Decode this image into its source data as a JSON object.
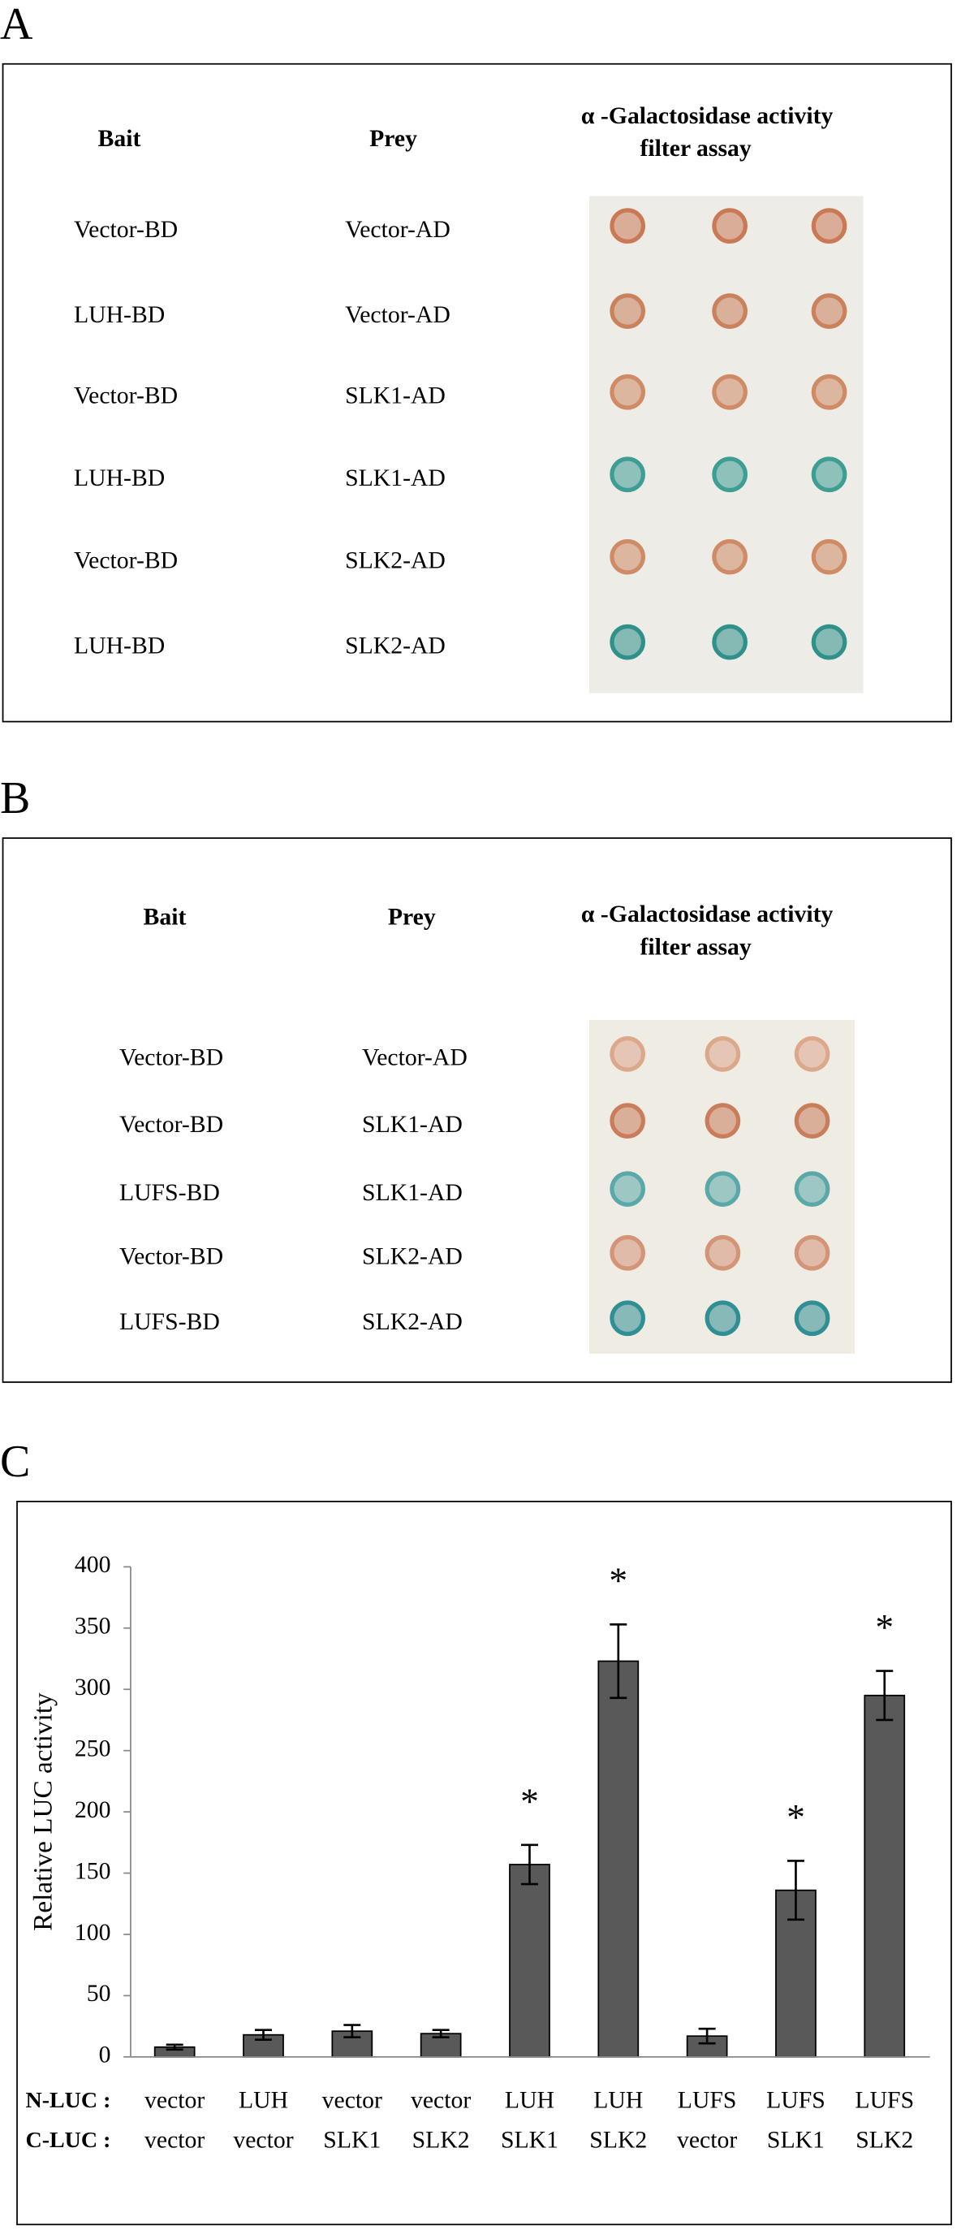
{
  "panel_a": {
    "label": "A",
    "headers": {
      "bait": "Bait",
      "prey": "Prey",
      "assay": [
        "α -Galactosidase activity",
        "filter assay"
      ]
    },
    "rows": [
      [
        "Vector-BD",
        "Vector-AD"
      ],
      [
        "LUH-BD",
        "Vector-AD"
      ],
      [
        "Vector-BD",
        "SLK1-AD"
      ],
      [
        "LUH-BD",
        "SLK1-AD"
      ],
      [
        "Vector-BD",
        "SLK2-AD"
      ],
      [
        "LUH-BD",
        "SLK2-AD"
      ]
    ]
  },
  "panel_b": {
    "label": "B",
    "headers": {
      "bait": "Bait",
      "prey": "Prey",
      "assay": [
        "α -Galactosidase activity",
        "filter assay"
      ]
    },
    "rows": [
      [
        "Vector-BD",
        "Vector-AD"
      ],
      [
        "Vector-BD",
        "SLK1-AD"
      ],
      [
        "LUFS-BD",
        "SLK1-AD"
      ],
      [
        "Vector-BD",
        "SLK2-AD"
      ],
      [
        "LUFS-BD",
        "SLK2-AD"
      ]
    ]
  },
  "chart_data": {
    "type": "bar",
    "label": "C",
    "ylabel": "Relative LUC activity",
    "category_row_labels": [
      "N-LUC :",
      "C-LUC :"
    ],
    "categories": [
      [
        "vector",
        "vector"
      ],
      [
        "LUH",
        "vector"
      ],
      [
        "vector",
        "SLK1"
      ],
      [
        "vector",
        "SLK2"
      ],
      [
        "LUH",
        "SLK1"
      ],
      [
        "LUH",
        "SLK2"
      ],
      [
        "LUFS",
        "vector"
      ],
      [
        "LUFS",
        "SLK1"
      ],
      [
        "LUFS",
        "SLK2"
      ]
    ],
    "values": [
      8,
      18,
      21,
      19,
      157,
      323,
      17,
      136,
      295
    ],
    "errors": [
      2,
      4,
      5,
      3,
      16,
      30,
      6,
      24,
      20
    ],
    "significance": [
      null,
      null,
      null,
      null,
      "*",
      "*",
      null,
      "*",
      "*"
    ],
    "color": "#595959",
    "ylim": [
      0,
      400
    ],
    "yticks": [
      0,
      50,
      100,
      150,
      200,
      250,
      300,
      350,
      400
    ]
  }
}
